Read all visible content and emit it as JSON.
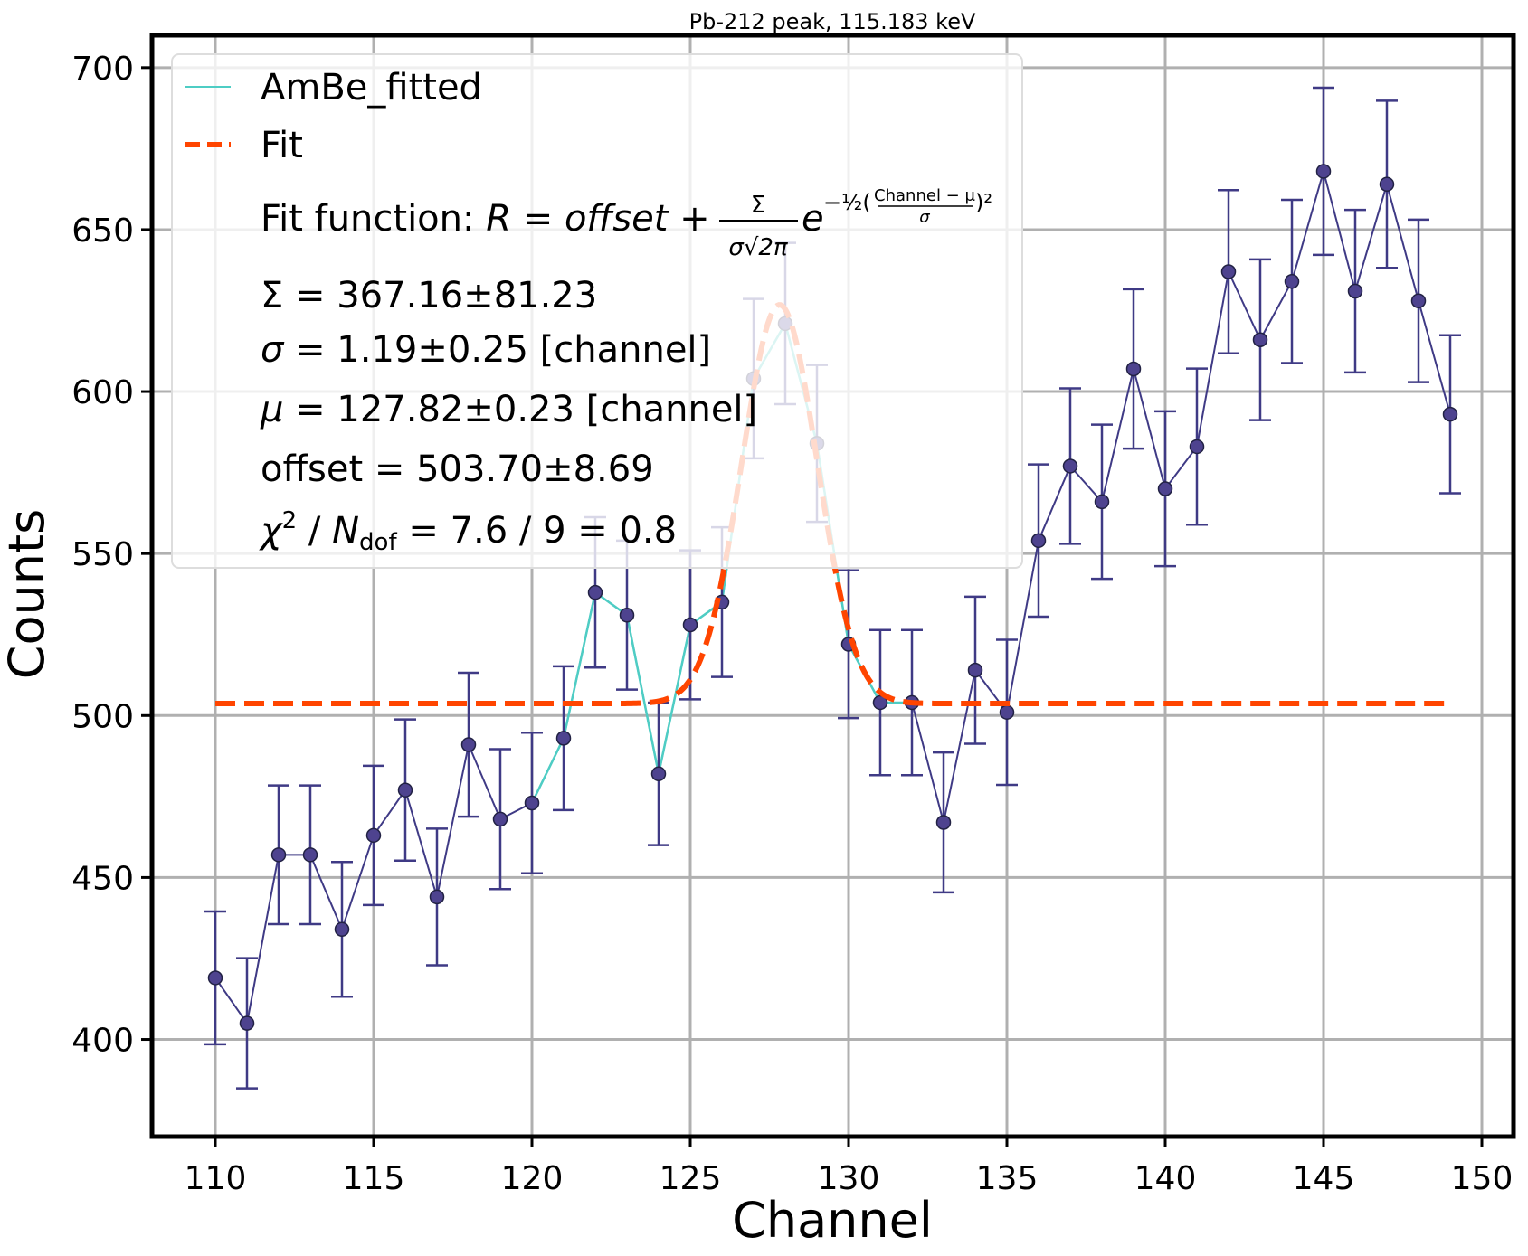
{
  "chart_data": {
    "type": "scatter",
    "title": "Pb-212 peak, 115.183 keV",
    "xlabel": "Channel",
    "ylabel": "Counts",
    "xlim": [
      108,
      151
    ],
    "ylim": [
      370,
      710
    ],
    "x_ticks": [
      110,
      115,
      120,
      125,
      130,
      135,
      140,
      145,
      150
    ],
    "y_ticks": [
      400,
      450,
      500,
      550,
      600,
      650,
      700
    ],
    "grid": true,
    "legend_position": "top-left",
    "colors": {
      "data": "#3f3a85",
      "marker": "#4e438f",
      "fitted": "#4ecdc4",
      "fit": "#ff4500",
      "fit_highlight": "#ffb499"
    },
    "series": [
      {
        "name": "AmBe_fitted",
        "x": [
          110,
          111,
          112,
          113,
          114,
          115,
          116,
          117,
          118,
          119,
          120,
          121,
          122,
          123,
          124,
          125,
          126,
          127,
          128,
          129,
          130,
          131,
          132,
          133,
          134,
          135,
          136,
          137,
          138,
          139,
          140,
          141,
          142,
          143,
          144,
          145,
          146,
          147,
          148,
          149
        ],
        "y": [
          419,
          405,
          457,
          457,
          434,
          463,
          477,
          444,
          491,
          468,
          473,
          493,
          538,
          531,
          482,
          528,
          535,
          604,
          621,
          584,
          522,
          504,
          504,
          467,
          514,
          501,
          554,
          577,
          566,
          607,
          570,
          583,
          637,
          616,
          634,
          668,
          631,
          664,
          628,
          593
        ],
        "yerr": [
          20.5,
          20.1,
          21.4,
          21.4,
          20.8,
          21.5,
          21.8,
          21.1,
          22.2,
          21.6,
          21.7,
          22.2,
          23.2,
          23.0,
          22.0,
          23.0,
          23.1,
          24.6,
          24.9,
          24.2,
          22.8,
          22.4,
          22.4,
          21.6,
          22.7,
          22.4,
          23.5,
          24.0,
          23.8,
          24.6,
          23.9,
          24.1,
          25.2,
          24.8,
          25.2,
          25.8,
          25.1,
          25.8,
          25.1,
          24.4
        ],
        "fitted_range": [
          120,
          132
        ]
      }
    ],
    "fit": {
      "name": "Fit",
      "function": "gaussian_plus_offset",
      "x_range": [
        110,
        149
      ],
      "sigma_total": 367.16,
      "sigma": 1.19,
      "mu": 127.82,
      "offset": 503.7
    },
    "annotations": {
      "fit_function_prefix": "Fit function: ",
      "fit_function_R": "R",
      "fit_function_eq": " = ",
      "fit_function_offset": "offset",
      "fit_function_plus": " + ",
      "fit_function_num": "Σ",
      "fit_function_den": "σ√2π",
      "fit_function_e": "e",
      "fit_function_exp": "−½(",
      "fit_function_exp_num": "Channel − μ",
      "fit_function_exp_den": "σ",
      "fit_function_exp_close": ")²",
      "Sigma_line": "Σ = 367.16±81.23",
      "sigma_sym": "σ",
      "sigma_rest": " = 1.19±0.25 [channel]",
      "mu_sym": "μ",
      "mu_rest": " = 127.82±0.23 [channel]",
      "offset_line": "offset = 503.70±8.69",
      "chi_sym": "χ",
      "chi_sup": "2",
      "chi_slash": " / ",
      "chi_N": "N",
      "chi_sub": "dof",
      "chi_rest": " = 7.6 / 9 = 0.8"
    }
  }
}
